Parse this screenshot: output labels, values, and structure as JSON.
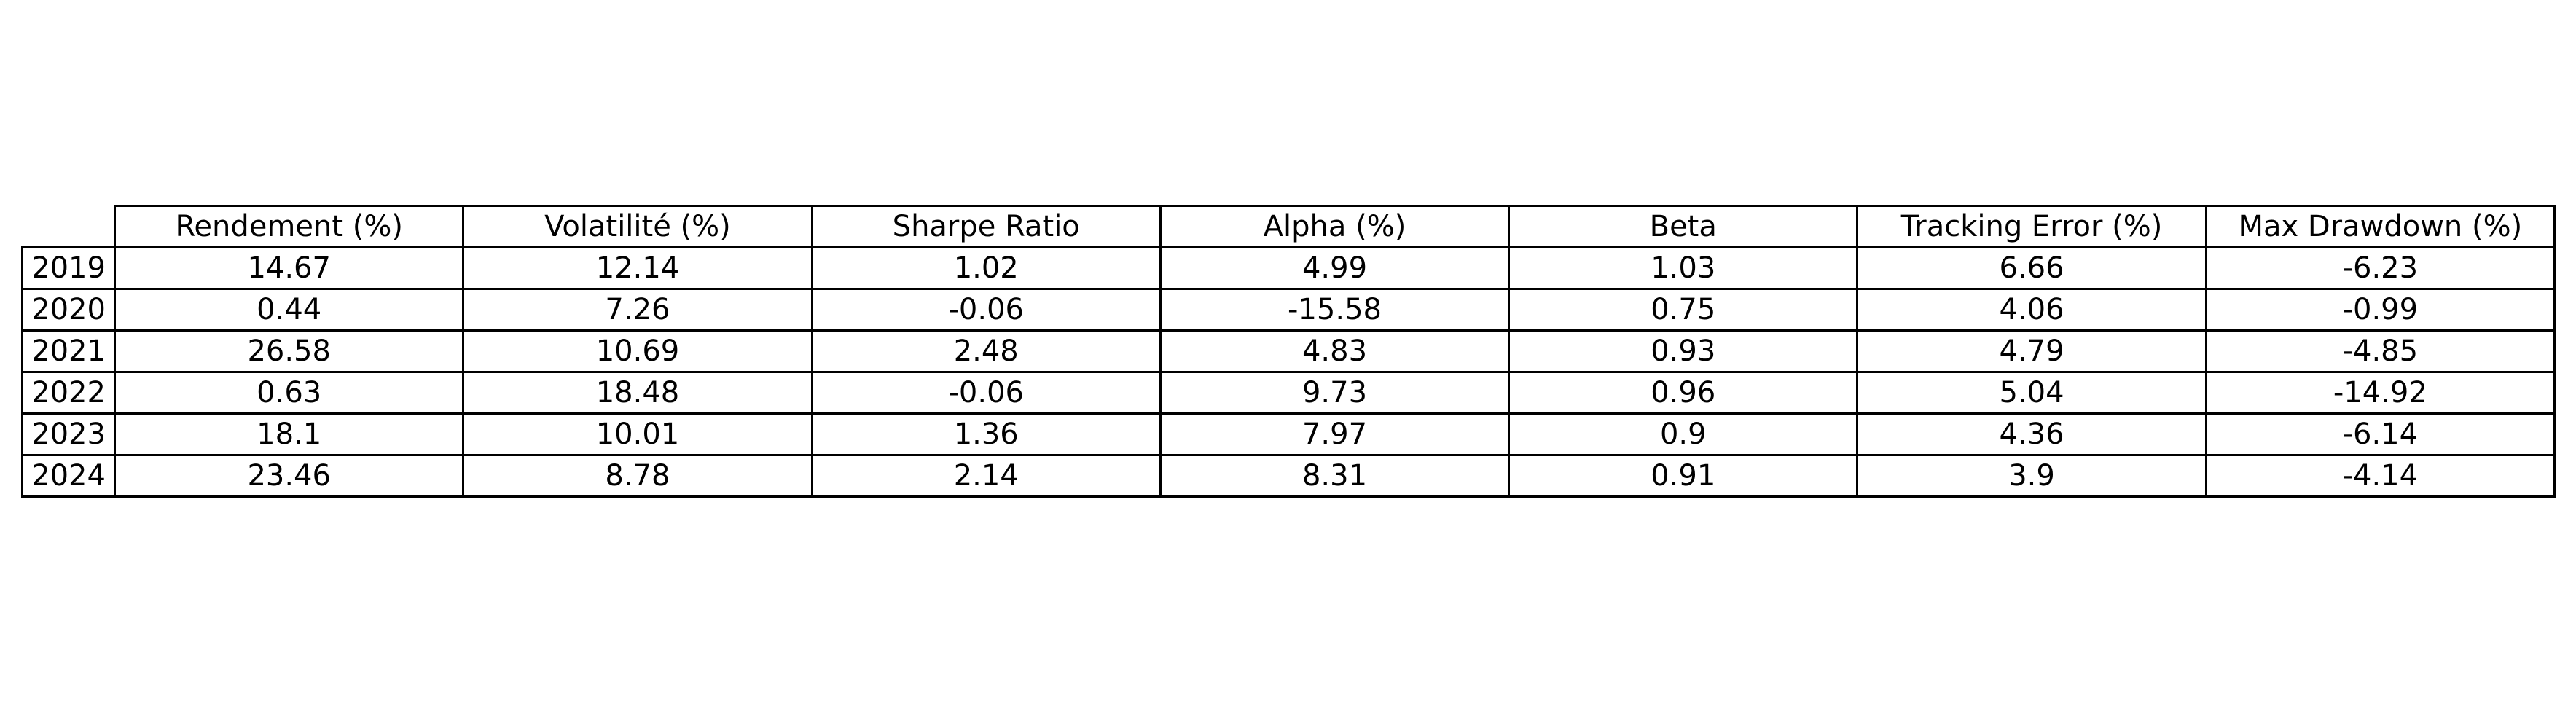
{
  "chart_data": {
    "type": "table",
    "columns": [
      "Rendement (%)",
      "Volatilité (%)",
      "Sharpe Ratio",
      "Alpha (%)",
      "Beta",
      "Tracking Error (%)",
      "Max Drawdown (%)"
    ],
    "rows": [
      {
        "label": "2019",
        "values": [
          "14.67",
          "12.14",
          "1.02",
          "4.99",
          "1.03",
          "6.66",
          "-6.23"
        ]
      },
      {
        "label": "2020",
        "values": [
          "0.44",
          "7.26",
          "-0.06",
          "-15.58",
          "0.75",
          "4.06",
          "-0.99"
        ]
      },
      {
        "label": "2021",
        "values": [
          "26.58",
          "10.69",
          "2.48",
          "4.83",
          "0.93",
          "4.79",
          "-4.85"
        ]
      },
      {
        "label": "2022",
        "values": [
          "0.63",
          "18.48",
          "-0.06",
          "9.73",
          "0.96",
          "5.04",
          "-14.92"
        ]
      },
      {
        "label": "2023",
        "values": [
          "18.1",
          "10.01",
          "1.36",
          "7.97",
          "0.9",
          "4.36",
          "-6.14"
        ]
      },
      {
        "label": "2024",
        "values": [
          "23.46",
          "8.78",
          "2.14",
          "8.31",
          "0.91",
          "3.9",
          "-4.14"
        ]
      }
    ]
  }
}
